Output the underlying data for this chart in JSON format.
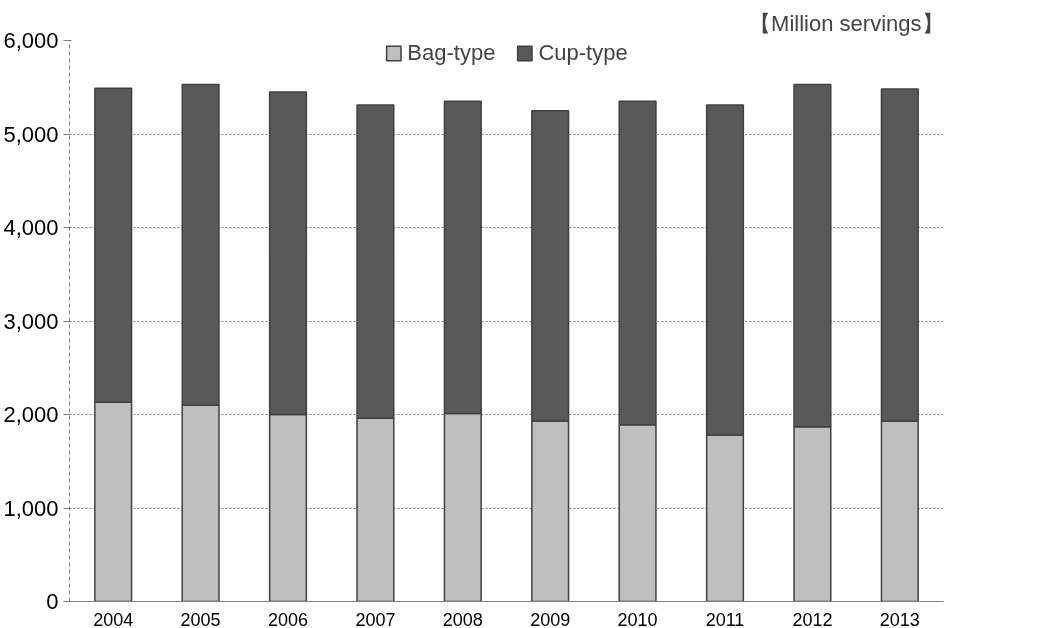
{
  "chart_data": {
    "type": "bar",
    "stacked": true,
    "categories": [
      "2004",
      "2005",
      "2006",
      "2007",
      "2008",
      "2009",
      "2010",
      "2011",
      "2012",
      "2013"
    ],
    "series": [
      {
        "name": "Bag-type",
        "color": "#bfbfbf",
        "values": [
          2130,
          2100,
          2000,
          1960,
          2010,
          1930,
          1890,
          1780,
          1870,
          1930
        ]
      },
      {
        "name": "Cup-type",
        "color": "#595959",
        "values": [
          3360,
          3430,
          3450,
          3350,
          3340,
          3320,
          3460,
          3530,
          3660,
          3550
        ]
      }
    ],
    "ylim": [
      0,
      6000
    ],
    "yticks": [
      {
        "value": 0,
        "label": "0"
      },
      {
        "value": 1000,
        "label": "1,000"
      },
      {
        "value": 2000,
        "label": "2,000"
      },
      {
        "value": 3000,
        "label": "3,000"
      },
      {
        "value": 4000,
        "label": "4,000"
      },
      {
        "value": 5000,
        "label": "5,000"
      },
      {
        "value": 6000,
        "label": "6,000"
      }
    ],
    "grid": "y",
    "legend": "top",
    "annotations": [
      "【Million servings】"
    ]
  }
}
